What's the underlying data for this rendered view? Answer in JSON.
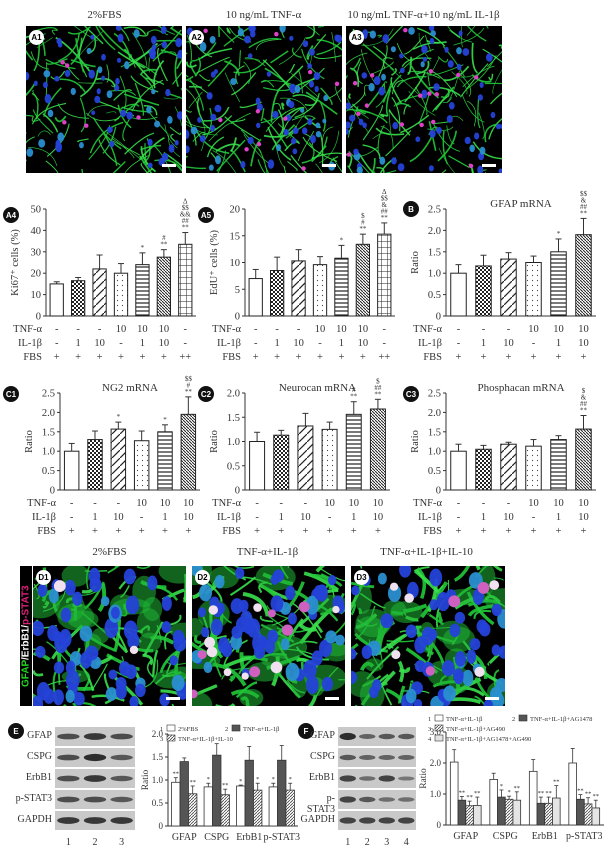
{
  "row_a": {
    "titles": [
      "2%FBS",
      "10 ng/mL TNF-α",
      "10 ng/mL TNF-α+10 ng/mL IL-1β"
    ],
    "badges": [
      "A1",
      "A2",
      "A3"
    ]
  },
  "row_d": {
    "titles": [
      "2%FBS",
      "TNF-α+IL-1β",
      "TNF-α+IL-1β+IL-10"
    ],
    "badges": [
      "D1",
      "D2",
      "D3"
    ],
    "side_label": {
      "gfap": "GFAP",
      "erbb1": "/ErbB1/",
      "pstat3": "p-STAT3"
    },
    "colors": {
      "gfap": "#1fd51f",
      "erbb1": "#ffffff",
      "pstat3": "#e0207a"
    }
  },
  "treatment_table": {
    "row_labels": [
      "TNF-α",
      "IL-1β",
      "FBS"
    ],
    "seven": {
      "tnf": [
        "-",
        "-",
        "-",
        "10",
        "10",
        "10",
        "-"
      ],
      "il1b": [
        "-",
        "1",
        "10",
        "-",
        "1",
        "10",
        "-"
      ],
      "fbs": [
        "+",
        "+",
        "+",
        "+",
        "+",
        "+",
        "++"
      ]
    },
    "six": {
      "tnf": [
        "-",
        "-",
        "-",
        "10",
        "10",
        "10"
      ],
      "il1b": [
        "-",
        "1",
        "10",
        "-",
        "1",
        "10"
      ],
      "fbs": [
        "+",
        "+",
        "+",
        "+",
        "+",
        "+"
      ]
    }
  },
  "blots": {
    "e": {
      "badge": "E",
      "labels": [
        "GFAP",
        "CSPG",
        "ErbB1",
        "p-STAT3",
        "GAPDH"
      ],
      "lanes": [
        "1",
        "2",
        "3"
      ]
    },
    "f": {
      "badge": "F",
      "labels": [
        "GFAP",
        "CSPG",
        "ErbB1",
        "p-STAT3",
        "GAPDH"
      ],
      "lanes": [
        "1",
        "2",
        "3",
        "4"
      ]
    }
  },
  "chart_data": [
    {
      "id": "A4",
      "type": "bar",
      "title": "",
      "ylabel": "Ki67⁺ cells (%)",
      "ylim": [
        0,
        50
      ],
      "yticks": [
        "0",
        "10",
        "20",
        "30",
        "40",
        "50"
      ],
      "categories": [
        "1",
        "2",
        "3",
        "4",
        "5",
        "6",
        "7"
      ],
      "values": [
        15,
        16.5,
        22,
        20,
        24,
        27.5,
        33.5
      ],
      "errors": [
        1,
        1.5,
        6.5,
        4.5,
        5.5,
        3.5,
        5.5
      ],
      "annotations": [
        "",
        "",
        "",
        "",
        "*",
        "#\n**",
        "Δ\n$$\n&&\n##\n**"
      ]
    },
    {
      "id": "A5",
      "type": "bar",
      "title": "",
      "ylabel": "EdU⁺ cells (%)",
      "ylim": [
        0,
        20
      ],
      "yticks": [
        "0",
        "5",
        "10",
        "15",
        "20"
      ],
      "categories": [
        "1",
        "2",
        "3",
        "4",
        "5",
        "6",
        "7"
      ],
      "values": [
        7,
        8.5,
        10.3,
        9.6,
        10.8,
        13.4,
        15.3
      ],
      "errors": [
        1.7,
        2.5,
        2.1,
        1.5,
        2.4,
        1.9,
        2.1
      ],
      "annotations": [
        "",
        "",
        "",
        "",
        "*",
        "$\n#\n**",
        "Δ\n$$\n&\n##\n**"
      ]
    },
    {
      "id": "B",
      "type": "bar",
      "title": "GFAP mRNA",
      "ylabel": "Ratio",
      "ylim": [
        0,
        2.5
      ],
      "yticks": [
        "0",
        "0.5",
        "1.0",
        "1.5",
        "2.0",
        "2.5"
      ],
      "categories": [
        "1",
        "2",
        "3",
        "4",
        "5",
        "6"
      ],
      "values": [
        1.0,
        1.17,
        1.33,
        1.25,
        1.5,
        1.9
      ],
      "errors": [
        0.2,
        0.25,
        0.15,
        0.15,
        0.3,
        0.38
      ],
      "annotations": [
        "",
        "",
        "",
        "",
        "*",
        "$$\n&\n##\n**"
      ]
    },
    {
      "id": "C1",
      "type": "bar",
      "title": "NG2 mRNA",
      "ylabel": "Ratio",
      "ylim": [
        0,
        2.5
      ],
      "yticks": [
        "0",
        "0.5",
        "1.0",
        "1.5",
        "2.0",
        "2.5"
      ],
      "categories": [
        "1",
        "2",
        "3",
        "4",
        "5",
        "6"
      ],
      "values": [
        1.0,
        1.3,
        1.57,
        1.27,
        1.5,
        1.95
      ],
      "errors": [
        0.2,
        0.22,
        0.18,
        0.25,
        0.18,
        0.45
      ],
      "annotations": [
        "",
        "",
        "*",
        "",
        "*",
        "$$\n#\n**"
      ]
    },
    {
      "id": "C2",
      "type": "bar",
      "title": "Neurocan mRNA",
      "ylabel": "Ratio",
      "ylim": [
        0,
        2.0
      ],
      "yticks": [
        "0",
        "0.5",
        "1.0",
        "1.5",
        "2.0"
      ],
      "categories": [
        "1",
        "2",
        "3",
        "4",
        "5",
        "6"
      ],
      "values": [
        1.0,
        1.13,
        1.32,
        1.25,
        1.56,
        1.67
      ],
      "errors": [
        0.19,
        0.1,
        0.26,
        0.15,
        0.26,
        0.2
      ],
      "annotations": [
        "",
        "",
        "",
        "",
        "#\n**",
        "$\n##\n**"
      ]
    },
    {
      "id": "C3",
      "type": "bar",
      "title": "Phosphacan mRNA",
      "ylabel": "Ratio",
      "ylim": [
        0,
        2.5
      ],
      "yticks": [
        "0",
        "0.5",
        "1.0",
        "1.5",
        "2.0",
        "2.5"
      ],
      "categories": [
        "1",
        "2",
        "3",
        "4",
        "5",
        "6"
      ],
      "values": [
        1.0,
        1.05,
        1.18,
        1.13,
        1.3,
        1.57
      ],
      "errors": [
        0.18,
        0.1,
        0.05,
        0.17,
        0.1,
        0.35
      ],
      "annotations": [
        "",
        "",
        "",
        "",
        "",
        "$\n&\n##\n**"
      ]
    },
    {
      "id": "E",
      "type": "bar",
      "title": "",
      "ylabel": "Ratio",
      "ylim": [
        0,
        2.0
      ],
      "yticks": [
        "0",
        "0.5",
        "1.0",
        "1.5",
        "2.0"
      ],
      "categories": [
        "GFAP",
        "CSPG",
        "ErbB1",
        "p-STAT3"
      ],
      "legend": [
        "1 2%FBS",
        "2 TNF-α+IL-1β",
        "3 TNF-α+IL-1β+IL-10"
      ],
      "series": [
        {
          "name": "2%FBS",
          "values": [
            0.95,
            0.85,
            0.87,
            0.85
          ],
          "errors": [
            0.1,
            0.08,
            0.02,
            0.08
          ],
          "annotations": [
            "**",
            "*",
            "*",
            "*"
          ]
        },
        {
          "name": "TNF-α+IL-1β",
          "values": [
            1.4,
            1.54,
            1.43,
            1.43
          ],
          "errors": [
            0.08,
            0.25,
            0.3,
            0.32
          ],
          "annotations": [
            "",
            "",
            "",
            ""
          ]
        },
        {
          "name": "TNF-α+IL-1β+IL-10",
          "values": [
            0.7,
            0.68,
            0.78,
            0.78
          ],
          "errors": [
            0.17,
            0.12,
            0.15,
            0.15
          ],
          "annotations": [
            "**",
            "**",
            "*",
            "*"
          ]
        }
      ]
    },
    {
      "id": "F",
      "type": "bar",
      "title": "",
      "ylabel": "Ratio",
      "ylim": [
        0,
        3.0
      ],
      "yticks": [
        "0",
        "1.0",
        "2.0",
        "3.0"
      ],
      "categories": [
        "GFAP",
        "CSPG",
        "ErbB1",
        "p-STAT3"
      ],
      "legend": [
        "1 TNF-α+IL-1β",
        "2 TNF-α+IL-1β+AG1478",
        "3 TNF-α+IL-1β+AG490",
        "4 TNF-α+IL-1β+AG1478+AG490"
      ],
      "series": [
        {
          "name": "TNF-α+IL-1β",
          "values": [
            2.03,
            1.47,
            1.73,
            2.0
          ],
          "errors": [
            0.4,
            0.2,
            0.38,
            0.47
          ],
          "annotations": [
            "",
            "",
            "",
            ""
          ]
        },
        {
          "name": "TNF-α+IL-1β+AG1478",
          "values": [
            0.8,
            0.9,
            0.7,
            0.83
          ],
          "errors": [
            0.12,
            0.23,
            0.2,
            0.15
          ],
          "annotations": [
            "**",
            "*",
            "**",
            "**"
          ]
        },
        {
          "name": "TNF-α+IL-1β+AG490",
          "values": [
            0.62,
            0.83,
            0.7,
            0.68
          ],
          "errors": [
            0.15,
            0.1,
            0.2,
            0.2
          ],
          "annotations": [
            "**",
            "*",
            "**",
            "**"
          ]
        },
        {
          "name": "TNF-α+IL-1β+AG1478+AG490",
          "values": [
            0.63,
            0.8,
            0.87,
            0.55
          ],
          "errors": [
            0.27,
            0.27,
            0.4,
            0.25
          ],
          "annotations": [
            "**",
            "**",
            "**",
            "**"
          ]
        }
      ]
    }
  ]
}
